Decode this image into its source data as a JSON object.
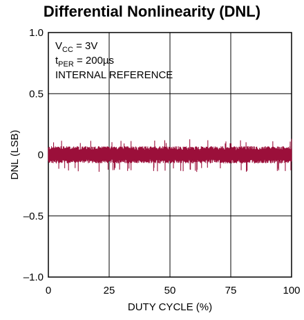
{
  "chart_data": {
    "type": "line",
    "title": "Differential Nonlinearity (DNL)",
    "xlabel": "DUTY CYCLE (%)",
    "ylabel": "DNL (LSB)",
    "xlim": [
      0,
      100
    ],
    "ylim": [
      -1.0,
      1.0
    ],
    "x_ticks": [
      "0",
      "25",
      "50",
      "75",
      "100"
    ],
    "y_ticks": [
      "1.0",
      "0.5",
      "0",
      "–0.5",
      "–1.0"
    ],
    "grid": true,
    "annotations": {
      "vcc_main": "V",
      "vcc_sub": "CC",
      "vcc_rest": " = 3V",
      "tper_main": "t",
      "tper_sub": "PER",
      "tper_rest": " = 200µs",
      "ref": "INTERNAL REFERENCE"
    },
    "series": [
      {
        "color": "#9b0f3a",
        "noise_band": {
          "x_start": 0,
          "x_end": 100,
          "upper_typical": 0.07,
          "lower_typical": -0.07,
          "min_spike": -0.14,
          "max_spike": 0.13
        }
      }
    ]
  }
}
